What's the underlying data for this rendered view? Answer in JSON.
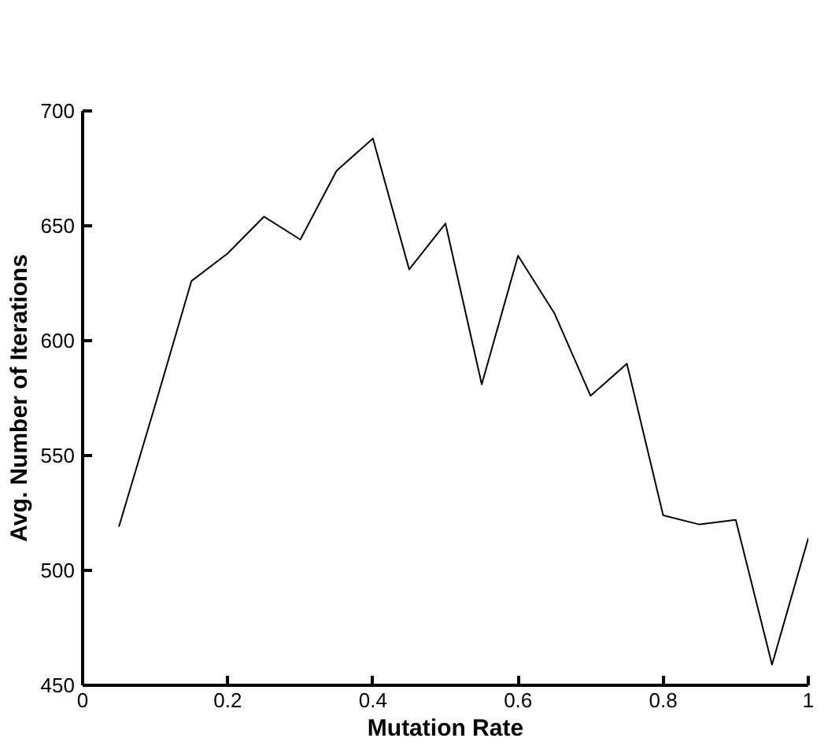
{
  "chart_data": {
    "type": "line",
    "xlabel": "Mutation Rate",
    "ylabel": "Avg. Number of Iterations",
    "x": [
      0.05,
      0.1,
      0.15,
      0.2,
      0.25,
      0.3,
      0.35,
      0.4,
      0.45,
      0.5,
      0.55,
      0.6,
      0.65,
      0.7,
      0.75,
      0.8,
      0.85,
      0.9,
      0.95,
      1.0
    ],
    "series": [
      {
        "color": "#000000",
        "values": [
          519,
          572,
          626,
          638,
          654,
          644,
          674,
          688,
          631,
          651,
          581,
          637,
          612,
          576,
          590,
          524,
          520,
          522,
          459,
          514
        ]
      }
    ],
    "xlim": [
      0,
      1
    ],
    "ylim": [
      450,
      700
    ],
    "xticks": [
      0,
      0.2,
      0.4,
      0.6,
      0.8,
      1
    ],
    "yticks": [
      450,
      500,
      550,
      600,
      650,
      700
    ],
    "grid": false,
    "marker": "none",
    "line_style": "solid"
  }
}
